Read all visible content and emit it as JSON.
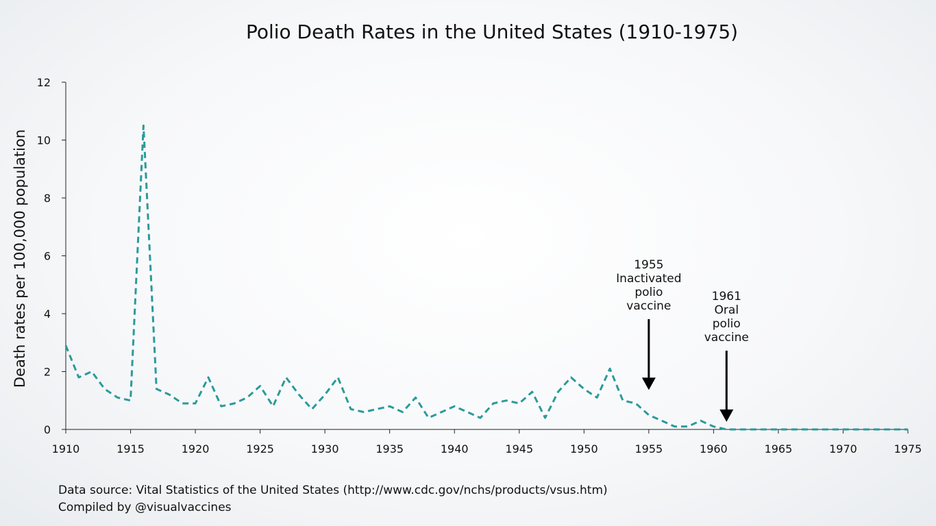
{
  "chart_data": {
    "type": "line",
    "title": "Polio Death Rates in the United States (1910-1975)",
    "xlabel": "",
    "ylabel": "Death rates per 100,000 population",
    "xlim": [
      1910,
      1975
    ],
    "ylim": [
      0,
      12
    ],
    "x_ticks": [
      "1910",
      "1915",
      "1920",
      "1925",
      "1930",
      "1935",
      "1940",
      "1945",
      "1950",
      "1955",
      "1960",
      "1965",
      "1970",
      "1975"
    ],
    "y_ticks": [
      "0",
      "2",
      "4",
      "6",
      "8",
      "10",
      "12"
    ],
    "grid": false,
    "line_style": "dashed",
    "line_color": "#2a9a9a",
    "series": [
      {
        "x": [
          1910,
          1911,
          1912,
          1913,
          1914,
          1915,
          1916,
          1917,
          1918,
          1919,
          1920,
          1921,
          1922,
          1923,
          1924,
          1925,
          1926,
          1927,
          1928,
          1929,
          1930,
          1931,
          1932,
          1933,
          1934,
          1935,
          1936,
          1937,
          1938,
          1939,
          1940,
          1941,
          1942,
          1943,
          1944,
          1945,
          1946,
          1947,
          1948,
          1949,
          1950,
          1951,
          1952,
          1953,
          1954,
          1955,
          1956,
          1957,
          1958,
          1959,
          1960,
          1961,
          1962,
          1963,
          1964,
          1965,
          1966,
          1967,
          1968,
          1969,
          1970,
          1971,
          1972,
          1973,
          1974,
          1975
        ],
        "y": [
          2.9,
          1.8,
          2.0,
          1.4,
          1.1,
          1.0,
          10.5,
          1.4,
          1.2,
          0.9,
          0.9,
          1.8,
          0.8,
          0.9,
          1.1,
          1.5,
          0.8,
          1.8,
          1.2,
          0.7,
          1.2,
          1.8,
          0.7,
          0.6,
          0.7,
          0.8,
          0.6,
          1.1,
          0.4,
          0.6,
          0.8,
          0.6,
          0.4,
          0.9,
          1.0,
          0.9,
          1.3,
          0.4,
          1.3,
          1.8,
          1.4,
          1.1,
          2.1,
          1.0,
          0.9,
          0.5,
          0.3,
          0.1,
          0.1,
          0.3,
          0.1,
          0.0,
          0.0,
          0.0,
          0.0,
          0.0,
          0.0,
          0.0,
          0.0,
          0.0,
          0.0,
          0.0,
          0.0,
          0.0,
          0.0,
          0.0
        ]
      }
    ],
    "annotations": [
      {
        "x": 1955,
        "y": 1.6,
        "lines": [
          "1955",
          "Inactivated",
          "polio",
          "vaccine"
        ]
      },
      {
        "x": 1961,
        "y": 0.5,
        "lines": [
          "1961",
          "Oral",
          "polio",
          "vaccine"
        ]
      }
    ]
  },
  "footer": {
    "source": "Data source: Vital Statistics of the United States (http://www.cdc.gov/nchs/products/vsus.htm)",
    "credit": "Compiled by @visualvaccines"
  }
}
